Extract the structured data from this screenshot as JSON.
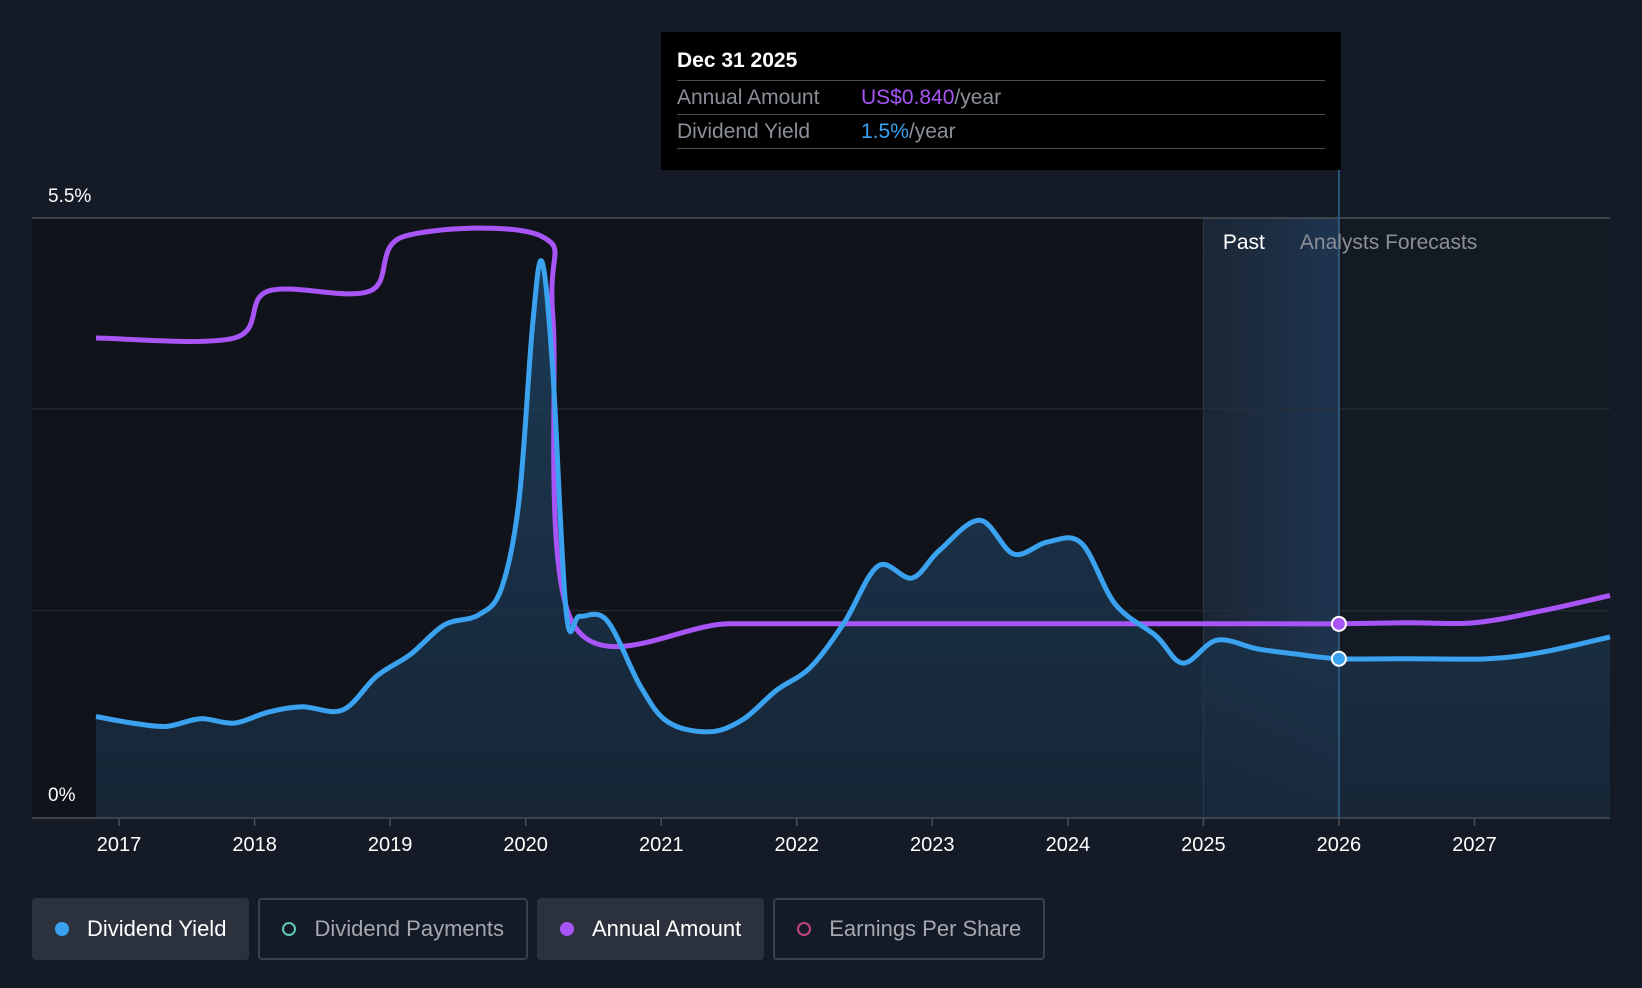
{
  "colors": {
    "background": "#151b26",
    "yield": "#3ba2f0",
    "annual": "#a855f7",
    "payments": "#5ec9b8",
    "eps": "#c2457e"
  },
  "tooltip": {
    "date": "Dec 31 2025",
    "annual_label": "Annual Amount",
    "annual_value": "US$0.840",
    "annual_unit": "/year",
    "yield_label": "Dividend Yield",
    "yield_value": "1.5%",
    "yield_unit": "/year"
  },
  "legend": [
    {
      "label": "Dividend Yield",
      "active": true,
      "filled": true,
      "color": "#3ba2f0"
    },
    {
      "label": "Dividend Payments",
      "active": false,
      "filled": false,
      "color": "#5ec9b8"
    },
    {
      "label": "Annual Amount",
      "active": true,
      "filled": true,
      "color": "#a855f7"
    },
    {
      "label": "Earnings Per Share",
      "active": false,
      "filled": false,
      "color": "#c2457e"
    }
  ],
  "chart_data": {
    "type": "line",
    "y_tick_labels": [
      "5.5%",
      "0%"
    ],
    "ylim": [
      0,
      5.5
    ],
    "x_ticks": [
      2017,
      2018,
      2019,
      2020,
      2021,
      2022,
      2023,
      2024,
      2025,
      2026,
      2027
    ],
    "xlim": [
      2016.83,
      2028.0
    ],
    "past_label": "Past",
    "forecast_label": "Analysts Forecasts",
    "past_region_start": 2025.0,
    "divider_x": 2026.0,
    "grid": true,
    "series": [
      {
        "name": "Dividend Yield",
        "color": "#3ba2f0",
        "area": true,
        "points": [
          [
            2016.83,
            0.93
          ],
          [
            2017.1,
            0.87
          ],
          [
            2017.35,
            0.84
          ],
          [
            2017.6,
            0.91
          ],
          [
            2017.85,
            0.87
          ],
          [
            2018.1,
            0.97
          ],
          [
            2018.35,
            1.02
          ],
          [
            2018.65,
            0.99
          ],
          [
            2018.9,
            1.3
          ],
          [
            2019.15,
            1.5
          ],
          [
            2019.4,
            1.77
          ],
          [
            2019.65,
            1.86
          ],
          [
            2019.82,
            2.1
          ],
          [
            2019.95,
            2.9
          ],
          [
            2020.05,
            4.5
          ],
          [
            2020.12,
            5.1
          ],
          [
            2020.2,
            4.1
          ],
          [
            2020.3,
            1.88
          ],
          [
            2020.4,
            1.85
          ],
          [
            2020.6,
            1.81
          ],
          [
            2020.85,
            1.2
          ],
          [
            2021.05,
            0.88
          ],
          [
            2021.35,
            0.79
          ],
          [
            2021.6,
            0.9
          ],
          [
            2021.85,
            1.17
          ],
          [
            2022.1,
            1.38
          ],
          [
            2022.35,
            1.79
          ],
          [
            2022.6,
            2.31
          ],
          [
            2022.85,
            2.2
          ],
          [
            2023.05,
            2.45
          ],
          [
            2023.35,
            2.73
          ],
          [
            2023.6,
            2.42
          ],
          [
            2023.85,
            2.53
          ],
          [
            2024.1,
            2.52
          ],
          [
            2024.35,
            1.96
          ],
          [
            2024.65,
            1.67
          ],
          [
            2024.85,
            1.42
          ],
          [
            2025.1,
            1.63
          ],
          [
            2025.4,
            1.55
          ],
          [
            2025.7,
            1.5
          ],
          [
            2026.0,
            1.46
          ],
          [
            2026.5,
            1.46
          ],
          [
            2027.1,
            1.46
          ],
          [
            2027.5,
            1.52
          ],
          [
            2028.0,
            1.66
          ]
        ]
      },
      {
        "name": "Annual Amount",
        "color": "#a855f7",
        "area": false,
        "points": [
          [
            2016.83,
            4.4
          ],
          [
            2017.85,
            4.4
          ],
          [
            2018.1,
            4.83
          ],
          [
            2018.85,
            4.83
          ],
          [
            2019.1,
            5.33
          ],
          [
            2020.12,
            5.33
          ],
          [
            2020.2,
            4.6
          ],
          [
            2020.35,
            1.78
          ],
          [
            2021.5,
            1.78
          ],
          [
            2022.5,
            1.78
          ],
          [
            2023.5,
            1.78
          ],
          [
            2024.5,
            1.78
          ],
          [
            2025.5,
            1.78
          ],
          [
            2026.0,
            1.78
          ],
          [
            2026.5,
            1.79
          ],
          [
            2027.0,
            1.79
          ],
          [
            2027.5,
            1.9
          ],
          [
            2028.0,
            2.04
          ]
        ]
      }
    ],
    "markers": [
      {
        "series": "Annual Amount",
        "x": 2026.0,
        "y": 1.78
      },
      {
        "series": "Dividend Yield",
        "x": 2026.0,
        "y": 1.46
      }
    ]
  }
}
